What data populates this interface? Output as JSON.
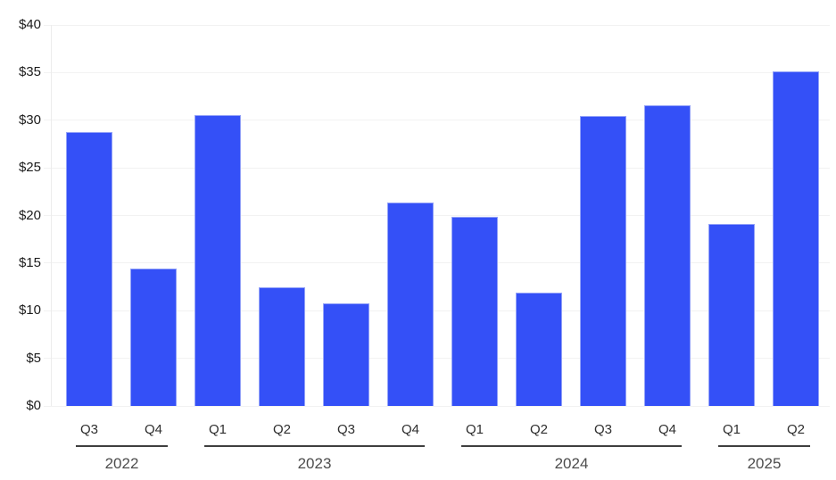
{
  "chart_data": {
    "type": "bar",
    "title": "",
    "xlabel": "",
    "ylabel": "",
    "categories": [
      "Q3",
      "Q4",
      "Q1",
      "Q2",
      "Q3",
      "Q4",
      "Q1",
      "Q2",
      "Q3",
      "Q4",
      "Q1",
      "Q2"
    ],
    "groups": [
      {
        "label": "2022",
        "count": 2
      },
      {
        "label": "2023",
        "count": 4
      },
      {
        "label": "2024",
        "count": 4
      },
      {
        "label": "2025",
        "count": 2
      }
    ],
    "values": [
      28.8,
      14.4,
      30.5,
      12.5,
      10.8,
      21.4,
      19.9,
      11.9,
      30.4,
      31.6,
      19.1,
      35.1
    ],
    "ylim": [
      0,
      40
    ],
    "ytick_step": 5,
    "ytick_labels": [
      "$0",
      "$5",
      "$10",
      "$15",
      "$20",
      "$25",
      "$30",
      "$35",
      "$40"
    ],
    "grid": true,
    "legend": null,
    "currency_prefix": "$"
  },
  "colors": {
    "bar_fill": "#3450f7",
    "bar_border": "#93a2f8",
    "grid_line": "#f2f2f2",
    "axis_line": "#ececec",
    "y_tick_label": "#1c1c1c",
    "quarter_label": "#2e2e2e",
    "group_line": "#3f3f3f",
    "year_label": "#4d4d4d",
    "background": "#ffffff"
  }
}
